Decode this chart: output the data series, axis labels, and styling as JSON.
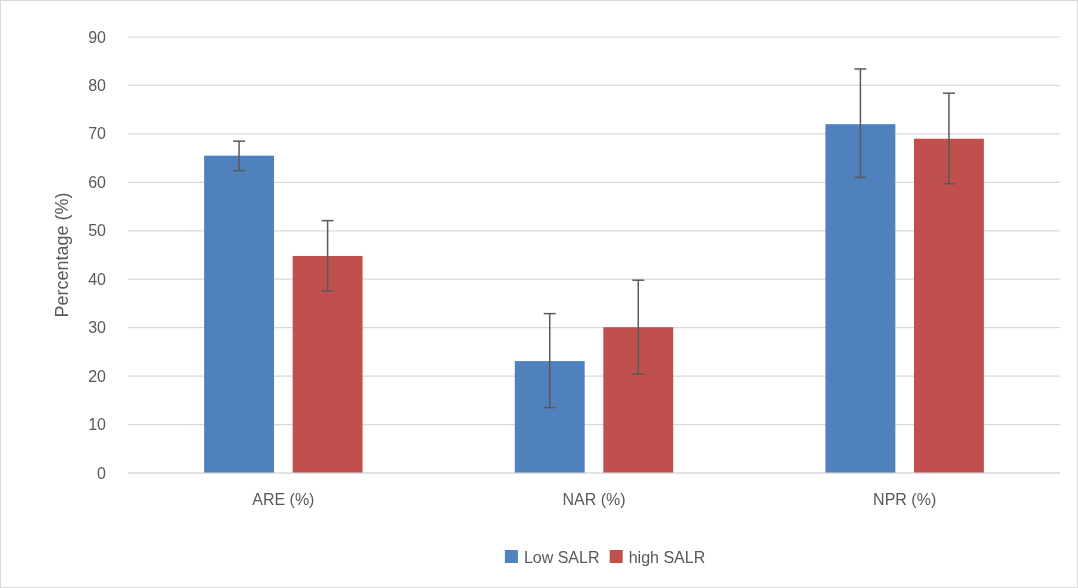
{
  "chart_data": {
    "type": "bar",
    "ylabel": "Percentage (%)",
    "categories": [
      "ARE (%)",
      "NAR (%)",
      "NPR (%)"
    ],
    "series": [
      {
        "name": "Low SALR",
        "color": "#4f81bd",
        "values": [
          65.5,
          23.1,
          72.0
        ],
        "errors": [
          [
            62.4,
            68.5
          ],
          [
            13.5,
            32.9
          ],
          [
            61.0,
            83.4
          ]
        ]
      },
      {
        "name": "high SALR",
        "color": "#c0504d",
        "values": [
          44.8,
          30.1,
          69.0
        ],
        "errors": [
          [
            37.6,
            52.1
          ],
          [
            20.4,
            39.8
          ],
          [
            59.7,
            78.4
          ]
        ]
      }
    ],
    "ylim": [
      0,
      90
    ],
    "yticks": [
      0,
      10,
      20,
      30,
      40,
      50,
      60,
      70,
      80,
      90
    ],
    "grid": "y",
    "legend": "bottom"
  }
}
